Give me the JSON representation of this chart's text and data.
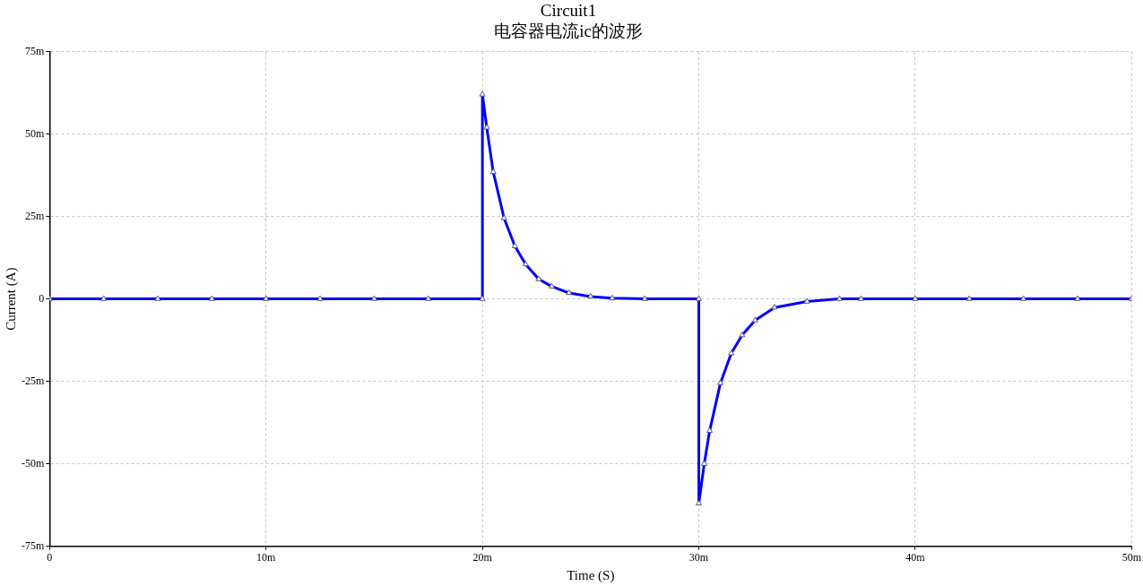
{
  "chart_data": {
    "type": "line",
    "title": "Circuit1",
    "subtitle": "电容器电流ic的波形",
    "xlabel": "Time (S)",
    "ylabel": "Current (A)",
    "x": [
      0,
      2.5,
      5,
      7.5,
      10,
      12.5,
      15,
      17.5,
      20,
      20,
      20.2,
      20.5,
      21,
      21.5,
      22,
      22.6,
      23.2,
      24,
      25,
      26,
      27.5,
      30,
      30,
      30.25,
      30.5,
      31,
      31.5,
      32,
      32.6,
      33.5,
      35,
      36.5,
      37.5,
      40,
      42.5,
      45,
      47.5,
      50
    ],
    "values": [
      0,
      0,
      0,
      0,
      0,
      0,
      0,
      0,
      0,
      62,
      52,
      38.5,
      24.5,
      16,
      10.5,
      6,
      3.8,
      1.8,
      0.7,
      0.2,
      0,
      0,
      -62,
      -50,
      -40,
      -25.5,
      -16.5,
      -11,
      -6.5,
      -2.6,
      -0.8,
      0,
      0,
      0,
      0,
      0,
      0,
      0
    ],
    "color": "#0000ff",
    "xlim": [
      0,
      50
    ],
    "xticks": [
      0,
      {
        "value": 10,
        "label": "10m"
      },
      {
        "value": 20,
        "label": "20m"
      },
      {
        "value": 30,
        "label": "30m"
      },
      {
        "value": 40,
        "label": "40m"
      },
      {
        "value": 50,
        "label": "50m"
      }
    ],
    "ylim": [
      -75,
      75
    ],
    "yticks": [
      {
        "value": -75,
        "label": "-75m"
      },
      {
        "value": -50,
        "label": "-50m"
      },
      {
        "value": -25,
        "label": "-25m"
      },
      0,
      {
        "value": 25,
        "label": "25m"
      },
      {
        "value": 50,
        "label": "50m"
      },
      {
        "value": 75,
        "label": "75m"
      }
    ],
    "grid": true,
    "marker": "triangle",
    "line_style": "solid"
  }
}
